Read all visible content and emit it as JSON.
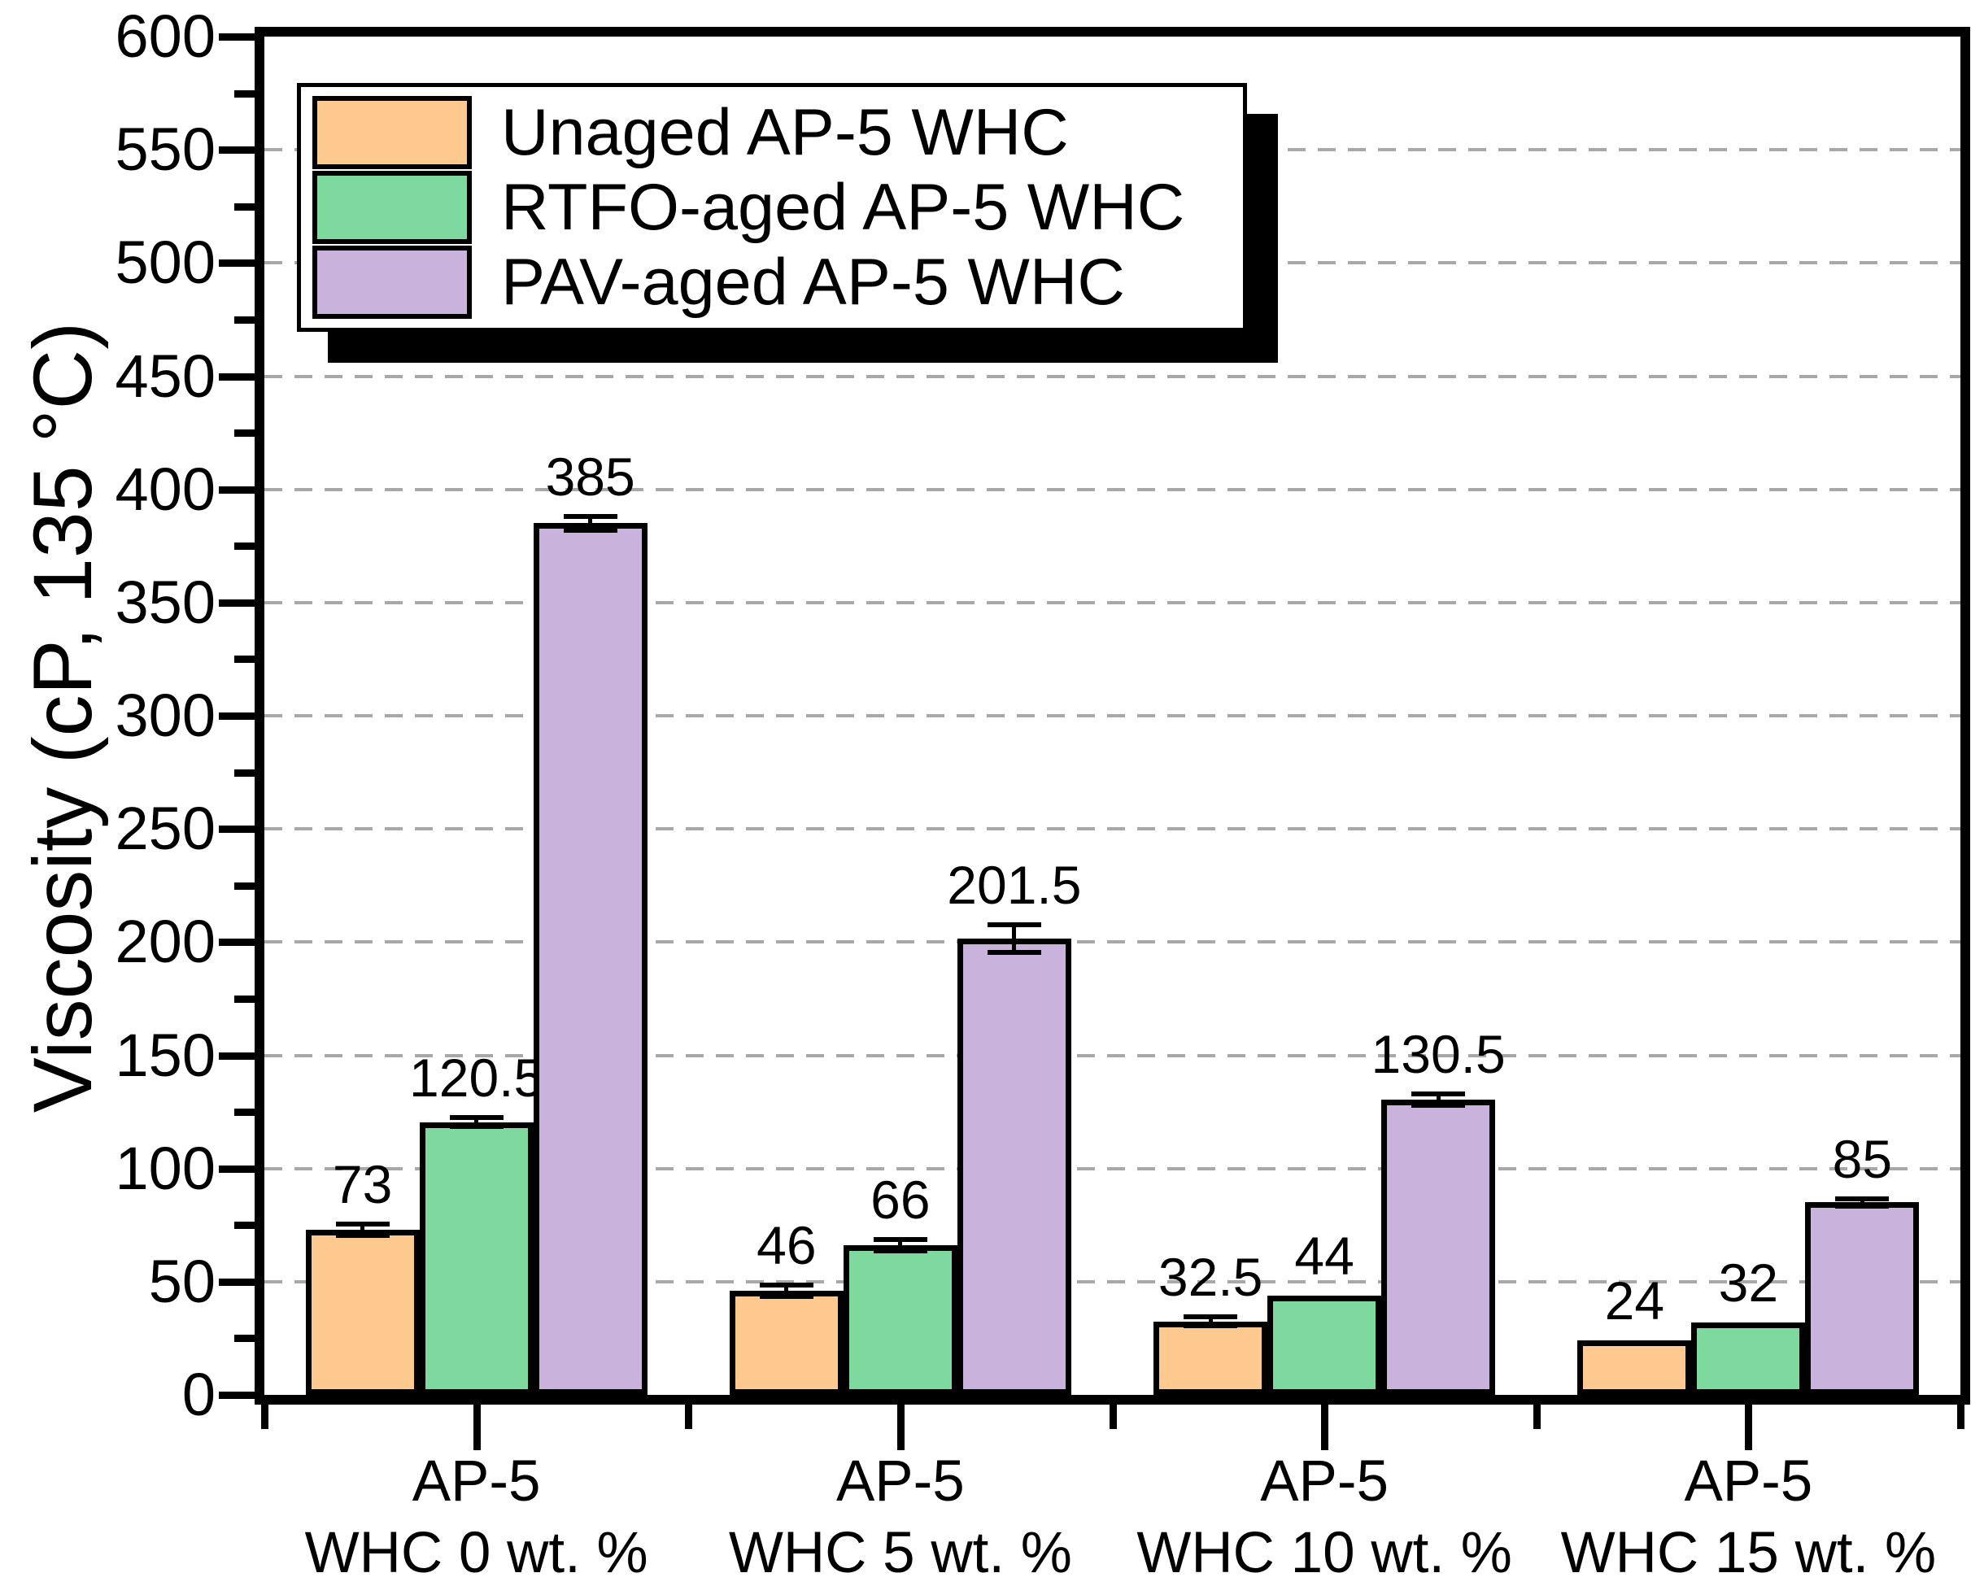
{
  "figure_background": "#ffffff",
  "axes": {
    "y_title": "Viscosity (cP, 135 °C)",
    "y_min": 0,
    "y_max": 600,
    "y_major_step": 50,
    "y_minor_step": 25,
    "y_tick_labels": [
      "0",
      "50",
      "100",
      "150",
      "200",
      "250",
      "300",
      "350",
      "400",
      "450",
      "500",
      "550",
      "600"
    ],
    "grid_color": "#a8a8a8",
    "frame_color": "#000000"
  },
  "legend": {
    "position": "top-left",
    "entries": [
      {
        "label": "Unaged AP-5 WHC",
        "color": "#FDC98E"
      },
      {
        "label": "RTFO-aged AP-5 WHC",
        "color": "#7ED99E"
      },
      {
        "label": "PAV-aged AP-5 WHC",
        "color": "#C9B3DC"
      }
    ]
  },
  "chart_data": {
    "type": "bar",
    "title": "",
    "xlabel": "",
    "ylabel": "Viscosity (cP, 135 °C)",
    "ylim": [
      0,
      600
    ],
    "ytick_step": 50,
    "grid": "horizontal dashed at every 50",
    "legend_position": "top-left inset with black drop shadow",
    "categories": [
      "AP-5 WHC 0 wt. %",
      "AP-5 WHC 5 wt. %",
      "AP-5 WHC 10 wt. %",
      "AP-5 WHC 15 wt. %"
    ],
    "category_label_lines": [
      [
        "AP-5",
        "WHC 0 wt. %"
      ],
      [
        "AP-5",
        "WHC 5 wt. %"
      ],
      [
        "AP-5",
        "WHC 10 wt. %"
      ],
      [
        "AP-5",
        "WHC 15 wt. %"
      ]
    ],
    "series": [
      {
        "name": "Unaged AP-5 WHC",
        "color": "#FDC98E",
        "values": [
          73,
          46,
          32.5,
          24
        ],
        "errors": [
          2.5,
          2.5,
          2,
          0
        ]
      },
      {
        "name": "RTFO-aged AP-5 WHC",
        "color": "#7ED99E",
        "values": [
          120.5,
          66,
          44,
          32
        ],
        "errors": [
          2,
          2.5,
          0,
          0
        ]
      },
      {
        "name": "PAV-aged AP-5 WHC",
        "color": "#C9B3DC",
        "values": [
          385,
          201.5,
          130.5,
          85
        ],
        "errors": [
          3,
          6,
          2.5,
          1.5
        ]
      }
    ],
    "value_labels": [
      [
        "73",
        "46",
        "32.5",
        "24"
      ],
      [
        "120.5",
        "66",
        "44",
        "32"
      ],
      [
        "385",
        "201.5",
        "130.5",
        "85"
      ]
    ]
  }
}
